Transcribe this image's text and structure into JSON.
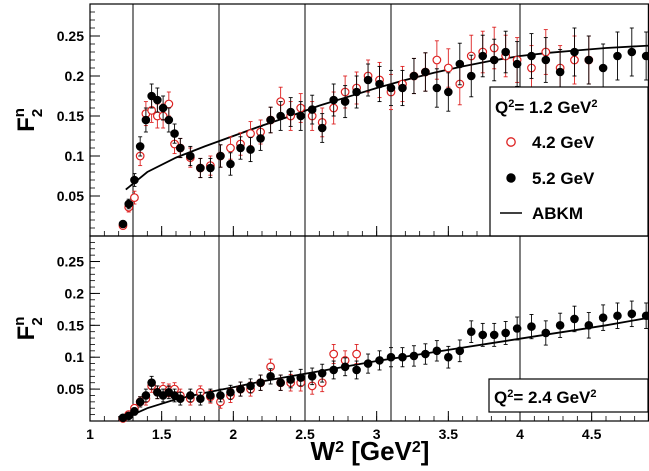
{
  "chart_data": {
    "type": "scatter",
    "shared": {
      "xlabel": {
        "base": "W",
        "sup": "2",
        "unit": " [GeV",
        "unit_sup": "2",
        "close": "]"
      },
      "xlim": [
        1.0,
        4.9
      ],
      "xticks": [
        "1",
        "1.5",
        "2",
        "2.5",
        "3",
        "3.5",
        "4",
        "4.5"
      ],
      "xtick_values": [
        1,
        1.5,
        2,
        2.5,
        3,
        3.5,
        4,
        4.5
      ],
      "vertical_lines_x": [
        1.3,
        1.9,
        2.5,
        3.1,
        4.0
      ],
      "series_styles": [
        {
          "name": "4.2 GeV",
          "marker": "open-circle",
          "color": "#dd2222"
        },
        {
          "name": "5.2 GeV",
          "marker": "filled-circle",
          "color": "#000000"
        },
        {
          "name": "ABKM",
          "marker": "line",
          "color": "#000000"
        }
      ]
    },
    "panels": [
      {
        "id": "top",
        "ylabel": {
          "base": "F",
          "sup": "n",
          "sub": "2"
        },
        "ylim": [
          0.0,
          0.29
        ],
        "yticks": [
          "0.05",
          "0.1",
          "0.15",
          "0.2",
          "0.25"
        ],
        "ytick_values": [
          0.05,
          0.1,
          0.15,
          0.2,
          0.25
        ],
        "legend": {
          "title": {
            "prefix": "Q",
            "sup": "2",
            "value": "= 1.2 GeV",
            "unit_sup": "2"
          },
          "entries": [
            "4.2 GeV",
            "5.2 GeV",
            "ABKM"
          ],
          "placement": "right"
        },
        "series": [
          {
            "name": "4.2 GeV",
            "marker": "open-circle",
            "x": [
              1.23,
              1.27,
              1.31,
              1.35,
              1.39,
              1.43,
              1.47,
              1.51,
              1.55,
              1.59,
              1.63,
              1.7,
              1.77,
              1.84,
              1.91,
              1.98,
              2.05,
              2.12,
              2.19,
              2.26,
              2.33,
              2.4,
              2.47,
              2.55,
              2.62,
              2.7,
              2.78,
              2.86,
              2.94,
              3.02,
              3.1,
              3.18,
              3.26,
              3.34,
              3.42,
              3.5,
              3.58,
              3.66,
              3.74,
              3.82,
              3.9,
              3.98,
              4.08,
              4.18,
              4.28,
              4.38,
              4.48
            ],
            "y": [
              0.013,
              0.036,
              0.048,
              0.1,
              0.153,
              0.157,
              0.15,
              0.15,
              0.165,
              0.115,
              0.11,
              0.098,
              0.085,
              0.088,
              0.1,
              0.11,
              0.115,
              0.128,
              0.13,
              0.145,
              0.168,
              0.15,
              0.16,
              0.15,
              0.142,
              0.16,
              0.18,
              0.185,
              0.2,
              0.195,
              0.18,
              0.19,
              0.2,
              0.205,
              0.22,
              0.21,
              0.19,
              0.225,
              0.23,
              0.235,
              0.225,
              0.22,
              0.21,
              0.23,
              0.21,
              0.22,
              0.22
            ],
            "err": [
              0.004,
              0.006,
              0.008,
              0.012,
              0.015,
              0.015,
              0.015,
              0.015,
              0.015,
              0.012,
              0.012,
              0.012,
              0.012,
              0.012,
              0.014,
              0.014,
              0.014,
              0.015,
              0.015,
              0.016,
              0.018,
              0.018,
              0.018,
              0.018,
              0.018,
              0.02,
              0.02,
              0.02,
              0.02,
              0.022,
              0.022,
              0.022,
              0.022,
              0.024,
              0.024,
              0.024,
              0.026,
              0.026,
              0.026,
              0.026,
              0.026,
              0.028,
              0.028,
              0.028,
              0.028,
              0.03,
              0.03
            ]
          },
          {
            "name": "5.2 GeV",
            "marker": "filled-circle",
            "x": [
              1.23,
              1.27,
              1.31,
              1.35,
              1.39,
              1.43,
              1.47,
              1.51,
              1.55,
              1.59,
              1.63,
              1.7,
              1.77,
              1.84,
              1.91,
              1.98,
              2.05,
              2.12,
              2.19,
              2.26,
              2.33,
              2.4,
              2.47,
              2.55,
              2.62,
              2.7,
              2.78,
              2.86,
              2.94,
              3.02,
              3.1,
              3.18,
              3.26,
              3.34,
              3.42,
              3.5,
              3.58,
              3.66,
              3.74,
              3.82,
              3.9,
              3.98,
              4.08,
              4.18,
              4.28,
              4.38,
              4.48,
              4.58,
              4.68,
              4.78,
              4.88
            ],
            "y": [
              0.015,
              0.04,
              0.07,
              0.112,
              0.145,
              0.175,
              0.17,
              0.16,
              0.145,
              0.128,
              0.11,
              0.1,
              0.085,
              0.085,
              0.1,
              0.09,
              0.11,
              0.108,
              0.122,
              0.145,
              0.15,
              0.155,
              0.15,
              0.158,
              0.135,
              0.17,
              0.168,
              0.18,
              0.195,
              0.19,
              0.185,
              0.185,
              0.2,
              0.205,
              0.185,
              0.18,
              0.215,
              0.2,
              0.225,
              0.22,
              0.23,
              0.215,
              0.225,
              0.22,
              0.205,
              0.23,
              0.22,
              0.21,
              0.225,
              0.23,
              0.225
            ],
            "err": [
              0.004,
              0.006,
              0.008,
              0.012,
              0.015,
              0.015,
              0.015,
              0.015,
              0.015,
              0.012,
              0.012,
              0.012,
              0.012,
              0.012,
              0.014,
              0.014,
              0.014,
              0.015,
              0.015,
              0.016,
              0.018,
              0.018,
              0.018,
              0.018,
              0.018,
              0.02,
              0.02,
              0.02,
              0.02,
              0.022,
              0.022,
              0.022,
              0.022,
              0.024,
              0.024,
              0.024,
              0.026,
              0.026,
              0.026,
              0.026,
              0.026,
              0.028,
              0.028,
              0.028,
              0.028,
              0.03,
              0.03,
              0.03,
              0.03,
              0.03,
              0.03
            ]
          },
          {
            "name": "ABKM",
            "marker": "line",
            "x": [
              1.25,
              1.4,
              1.6,
              1.8,
              2.0,
              2.2,
              2.4,
              2.6,
              2.8,
              3.0,
              3.2,
              3.4,
              3.6,
              3.8,
              4.0,
              4.2,
              4.4,
              4.6,
              4.9
            ],
            "y": [
              0.058,
              0.08,
              0.098,
              0.112,
              0.125,
              0.138,
              0.15,
              0.163,
              0.174,
              0.185,
              0.195,
              0.204,
              0.212,
              0.219,
              0.225,
              0.229,
              0.232,
              0.235,
              0.238
            ]
          }
        ]
      },
      {
        "id": "bottom",
        "ylabel": {
          "base": "F",
          "sup": "n",
          "sub": "2"
        },
        "ylim": [
          0.0,
          0.29
        ],
        "yticks": [
          "0.05",
          "0.1",
          "0.15",
          "0.2",
          "0.25"
        ],
        "ytick_values": [
          0.05,
          0.1,
          0.15,
          0.2,
          0.25
        ],
        "legend": {
          "title": {
            "prefix": "Q",
            "sup": "2",
            "value": "= 2.4 GeV",
            "unit_sup": "2"
          },
          "entries": [],
          "placement": "bottom-right"
        },
        "series": [
          {
            "name": "4.2 GeV",
            "marker": "open-circle",
            "x": [
              1.23,
              1.27,
              1.31,
              1.35,
              1.39,
              1.43,
              1.47,
              1.51,
              1.55,
              1.59,
              1.63,
              1.7,
              1.77,
              1.84,
              1.91,
              1.98,
              2.05,
              2.12,
              2.19,
              2.26,
              2.33,
              2.4,
              2.47,
              2.55,
              2.62,
              2.7,
              2.78,
              2.86
            ],
            "y": [
              0.004,
              0.01,
              0.02,
              0.03,
              0.035,
              0.055,
              0.045,
              0.05,
              0.048,
              0.05,
              0.04,
              0.035,
              0.045,
              0.038,
              0.03,
              0.04,
              0.05,
              0.05,
              0.06,
              0.085,
              0.06,
              0.06,
              0.06,
              0.055,
              0.06,
              0.105,
              0.095,
              0.105
            ],
            "err": [
              0.003,
              0.005,
              0.006,
              0.008,
              0.01,
              0.01,
              0.01,
              0.01,
              0.01,
              0.01,
              0.01,
              0.01,
              0.01,
              0.01,
              0.01,
              0.011,
              0.011,
              0.011,
              0.012,
              0.012,
              0.012,
              0.013,
              0.013,
              0.013,
              0.014,
              0.015,
              0.015,
              0.015
            ]
          },
          {
            "name": "5.2 GeV",
            "marker": "filled-circle",
            "x": [
              1.23,
              1.27,
              1.31,
              1.35,
              1.39,
              1.43,
              1.47,
              1.51,
              1.55,
              1.59,
              1.63,
              1.7,
              1.77,
              1.84,
              1.91,
              1.98,
              2.05,
              2.12,
              2.19,
              2.26,
              2.33,
              2.4,
              2.47,
              2.55,
              2.62,
              2.7,
              2.78,
              2.86,
              2.94,
              3.02,
              3.1,
              3.18,
              3.26,
              3.34,
              3.42,
              3.5,
              3.58,
              3.66,
              3.74,
              3.82,
              3.9,
              3.98,
              4.08,
              4.18,
              4.28,
              4.38,
              4.48,
              4.58,
              4.68,
              4.78,
              4.88
            ],
            "y": [
              0.005,
              0.008,
              0.015,
              0.03,
              0.04,
              0.06,
              0.045,
              0.04,
              0.045,
              0.04,
              0.035,
              0.04,
              0.035,
              0.04,
              0.04,
              0.045,
              0.05,
              0.055,
              0.06,
              0.07,
              0.06,
              0.065,
              0.068,
              0.07,
              0.075,
              0.08,
              0.085,
              0.08,
              0.09,
              0.095,
              0.1,
              0.1,
              0.102,
              0.105,
              0.11,
              0.1,
              0.11,
              0.14,
              0.135,
              0.135,
              0.138,
              0.145,
              0.148,
              0.138,
              0.15,
              0.16,
              0.15,
              0.162,
              0.165,
              0.168,
              0.165
            ],
            "err": [
              0.003,
              0.005,
              0.006,
              0.008,
              0.01,
              0.01,
              0.01,
              0.01,
              0.01,
              0.01,
              0.01,
              0.01,
              0.01,
              0.01,
              0.01,
              0.011,
              0.011,
              0.011,
              0.012,
              0.012,
              0.012,
              0.013,
              0.013,
              0.013,
              0.014,
              0.014,
              0.014,
              0.014,
              0.015,
              0.015,
              0.015,
              0.015,
              0.016,
              0.016,
              0.016,
              0.017,
              0.017,
              0.017,
              0.018,
              0.018,
              0.018,
              0.018,
              0.019,
              0.019,
              0.019,
              0.02,
              0.02,
              0.02,
              0.02,
              0.02,
              0.02
            ]
          },
          {
            "name": "ABKM",
            "marker": "line",
            "x": [
              1.25,
              1.4,
              1.6,
              1.8,
              2.0,
              2.2,
              2.4,
              2.6,
              2.8,
              3.0,
              3.2,
              3.4,
              3.6,
              3.8,
              4.0,
              4.2,
              4.4,
              4.6,
              4.9
            ],
            "y": [
              0.005,
              0.02,
              0.034,
              0.044,
              0.053,
              0.062,
              0.07,
              0.078,
              0.086,
              0.094,
              0.101,
              0.108,
              0.115,
              0.122,
              0.129,
              0.136,
              0.143,
              0.15,
              0.162
            ]
          }
        ]
      }
    ]
  }
}
